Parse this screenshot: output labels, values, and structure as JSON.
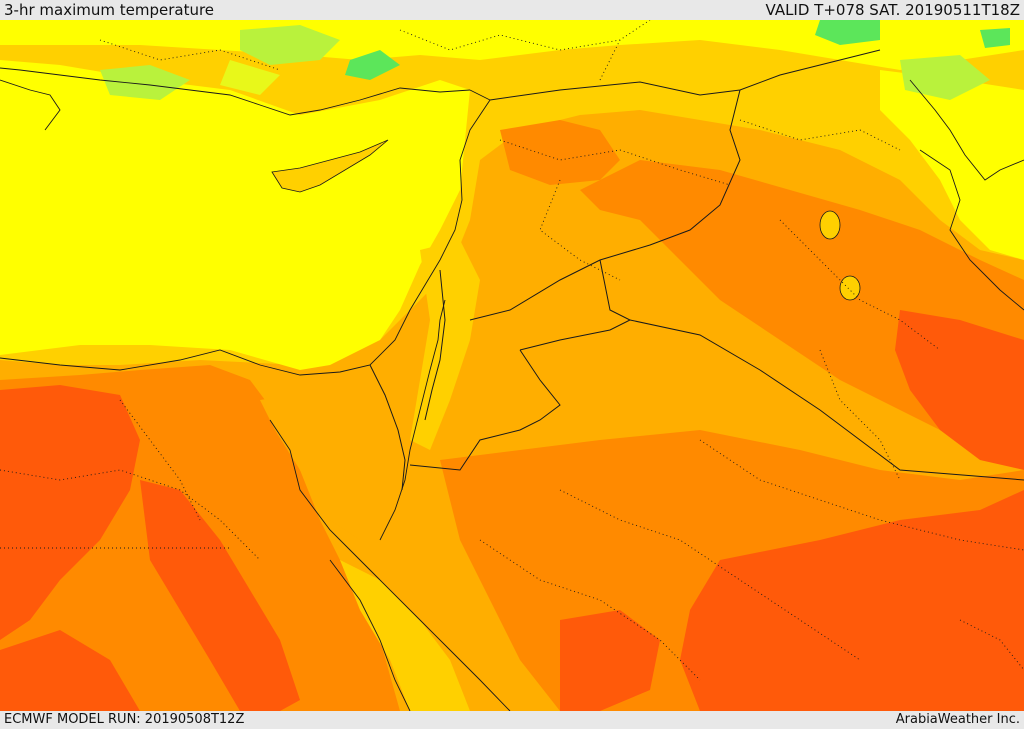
{
  "header": {
    "title": "3-hr maximum temperature",
    "valid": "VALID T+078 SAT. 20190511T18Z"
  },
  "footer": {
    "model_run": "ECMWF MODEL RUN: 20190508T12Z",
    "credit": "ArabiaWeather Inc."
  },
  "colors": {
    "green": "#5ce65a",
    "light_green": "#b9f23c",
    "yellow_green": "#e8f81a",
    "yellow": "#ffff00",
    "light_orange": "#ffd000",
    "orange": "#ffae00",
    "dark_orange": "#ff8a00",
    "red_orange": "#ff5a0a",
    "red": "#ff3a0a",
    "border": "#1a1a1a"
  }
}
